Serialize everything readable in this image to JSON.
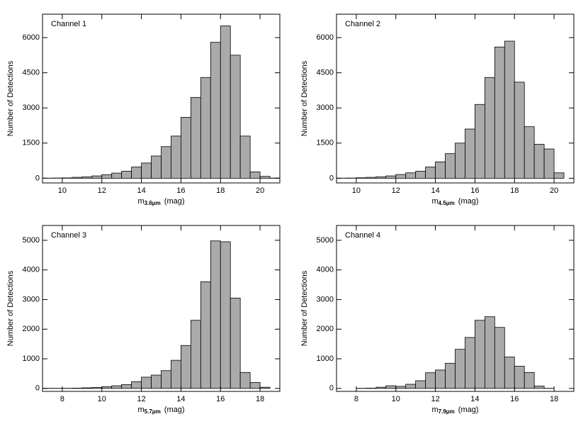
{
  "chart_data": [
    {
      "type": "histogram",
      "title": "Channel 1",
      "xlabel": "m",
      "xlabel_subscript": "3.6μm",
      "xlabel_unit": "(mag)",
      "ylabel": "Number of Detections",
      "color": "#aaaaaa",
      "bins": [
        9,
        9.5,
        10,
        10.5,
        11,
        11.5,
        12,
        12.5,
        13,
        13.5,
        14,
        14.5,
        15,
        15.5,
        16,
        16.5,
        17,
        17.5,
        18,
        18.5,
        19,
        19.5,
        20,
        20.5,
        21
      ],
      "values": [
        5,
        10,
        15,
        40,
        60,
        100,
        150,
        220,
        300,
        480,
        650,
        950,
        1350,
        1800,
        2600,
        3450,
        4300,
        5800,
        6500,
        5250,
        1800,
        270,
        80,
        10
      ],
      "xlim": [
        9,
        21
      ],
      "xticks": [
        10,
        12,
        14,
        16,
        18,
        20
      ],
      "ylim": [
        -200,
        7000
      ],
      "yticks": [
        0,
        1500,
        3000,
        4500,
        6000
      ]
    },
    {
      "type": "histogram",
      "title": "Channel 2",
      "xlabel": "m",
      "xlabel_subscript": "4.5μm",
      "xlabel_unit": "(mag)",
      "ylabel": "Number of Detections",
      "color": "#aaaaaa",
      "bins": [
        9,
        9.5,
        10,
        10.5,
        11,
        11.5,
        12,
        12.5,
        13,
        13.5,
        14,
        14.5,
        15,
        15.5,
        16,
        16.5,
        17,
        17.5,
        18,
        18.5,
        19,
        19.5,
        20,
        20.5,
        21
      ],
      "values": [
        5,
        10,
        20,
        40,
        60,
        100,
        160,
        230,
        300,
        480,
        700,
        1050,
        1500,
        2100,
        3150,
        4300,
        5600,
        5850,
        4100,
        2200,
        1450,
        1250,
        230,
        0
      ],
      "xlim": [
        9,
        21
      ],
      "xticks": [
        10,
        12,
        14,
        16,
        18,
        20
      ],
      "ylim": [
        -200,
        7000
      ],
      "yticks": [
        0,
        1500,
        3000,
        4500,
        6000
      ]
    },
    {
      "type": "histogram",
      "title": "Channel 3",
      "xlabel": "m",
      "xlabel_subscript": "5.7μm",
      "xlabel_unit": "(mag)",
      "ylabel": "Number of Detections",
      "color": "#aaaaaa",
      "bins": [
        7,
        7.5,
        8,
        8.5,
        9,
        9.5,
        10,
        10.5,
        11,
        11.5,
        12,
        12.5,
        13,
        13.5,
        14,
        14.5,
        15,
        15.5,
        16,
        16.5,
        17,
        17.5,
        18,
        18.5,
        19
      ],
      "values": [
        5,
        5,
        5,
        10,
        20,
        30,
        60,
        90,
        130,
        230,
        380,
        450,
        600,
        950,
        1450,
        2300,
        3600,
        4980,
        4950,
        3050,
        540,
        200,
        40,
        0
      ],
      "xlim": [
        7,
        19
      ],
      "xticks": [
        8,
        10,
        12,
        14,
        16,
        18
      ],
      "ylim": [
        -100,
        5500
      ],
      "yticks": [
        0,
        1000,
        2000,
        3000,
        4000,
        5000
      ]
    },
    {
      "type": "histogram",
      "title": "Channel 4",
      "xlabel": "m",
      "xlabel_subscript": "7.9μm",
      "xlabel_unit": "(mag)",
      "ylabel": "Number of Detections",
      "color": "#aaaaaa",
      "bins": [
        7,
        7.5,
        8,
        8.5,
        9,
        9.5,
        10,
        10.5,
        11,
        11.5,
        12,
        12.5,
        13,
        13.5,
        14,
        14.5,
        15,
        15.5,
        16,
        16.5,
        17,
        17.5,
        18,
        18.5,
        19
      ],
      "values": [
        0,
        0,
        5,
        10,
        40,
        90,
        70,
        140,
        260,
        530,
        620,
        850,
        1320,
        1720,
        2300,
        2420,
        2060,
        1060,
        750,
        540,
        80,
        5,
        0,
        0
      ],
      "xlim": [
        7,
        19
      ],
      "xticks": [
        8,
        10,
        12,
        14,
        16,
        18
      ],
      "ylim": [
        -100,
        5500
      ],
      "yticks": [
        0,
        1000,
        2000,
        3000,
        4000,
        5000
      ]
    }
  ]
}
